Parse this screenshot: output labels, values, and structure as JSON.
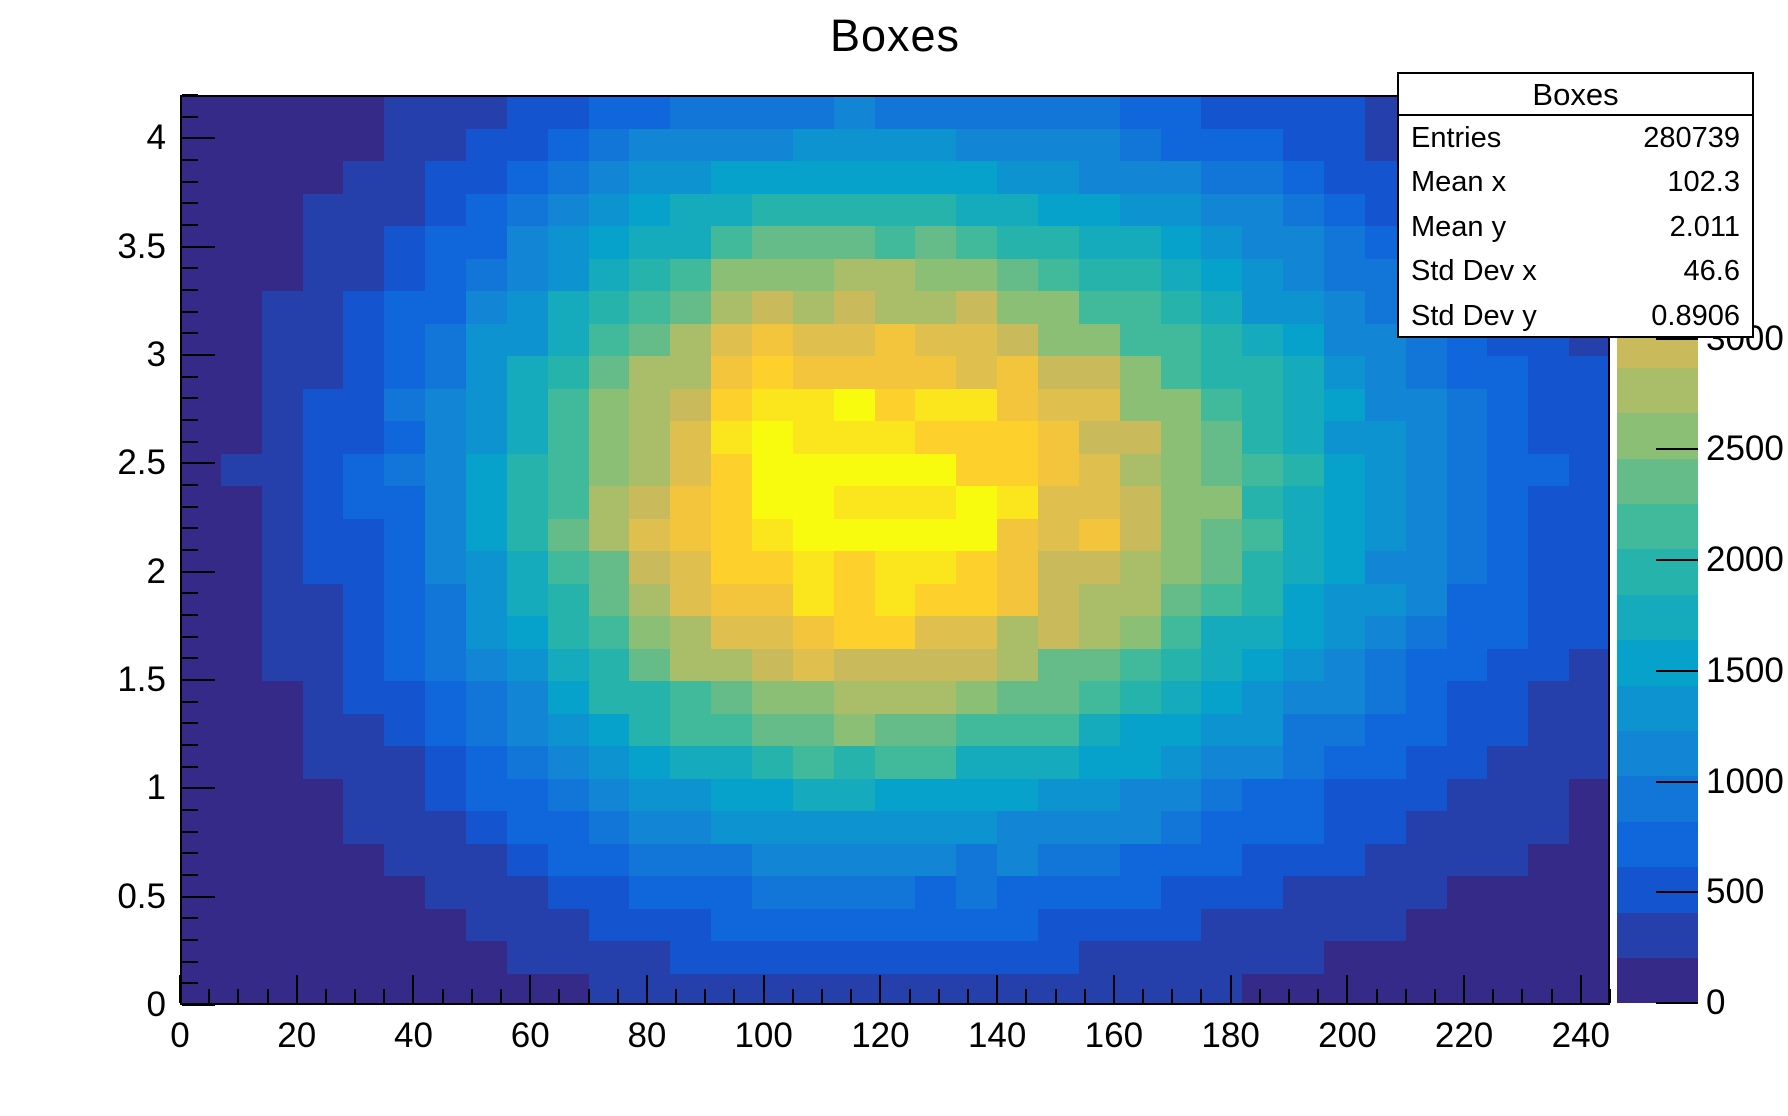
{
  "page": {
    "title": "Boxes",
    "background": "#ffffff"
  },
  "stats_box": {
    "title": "Boxes",
    "rows": [
      {
        "label": "Entries",
        "value": "280739"
      },
      {
        "label": "Mean x",
        "value": "102.3"
      },
      {
        "label": "Mean y",
        "value": "2.011"
      },
      {
        "label": "Std Dev x",
        "value": "46.6"
      },
      {
        "label": "Std Dev y",
        "value": "0.8906"
      }
    ]
  },
  "chart_data": {
    "type": "heatmap",
    "title": "Boxes",
    "xlabel": "",
    "ylabel": "",
    "x_range": [
      0,
      245
    ],
    "y_range": [
      0,
      4.2
    ],
    "nx": 35,
    "ny": 28,
    "x_ticks_major": [
      0,
      20,
      40,
      60,
      80,
      100,
      120,
      140,
      160,
      180,
      200,
      220,
      240
    ],
    "x_tick_minor_step": 5,
    "y_ticks_major": [
      0,
      0.5,
      1,
      1.5,
      2,
      2.5,
      3,
      3.5,
      4
    ],
    "y_tick_minor_step": 0.1,
    "z_max": 4100,
    "n_levels": 20,
    "colorbar_ticks": [
      0,
      500,
      1000,
      1500,
      2000,
      2500,
      3000
    ],
    "legend_position": "right-colorbar",
    "grid": false,
    "palette": [
      "#352a87",
      "#253fab",
      "#1554cf",
      "#1066db",
      "#1275d8",
      "#1385d5",
      "#0d93d0",
      "#07a2cb",
      "#15abbc",
      "#26b3ac",
      "#41b99b",
      "#66bc88",
      "#8bbf75",
      "#aabd69",
      "#c9bb5c",
      "#dfbf4d",
      "#f2c53c",
      "#fdd02c",
      "#fbe61d",
      "#f9fb0e"
    ],
    "model": {
      "comment_visible_in_pixels_only": "2D bell-shaped count distribution quantized to 20 contour levels",
      "amplitude": 4100,
      "mean_x": 113,
      "mean_y": 2.38,
      "sigma_x_left": 42,
      "sigma_x_right": 62,
      "sigma_y": 1.06,
      "noise_fraction": 0.06
    }
  }
}
